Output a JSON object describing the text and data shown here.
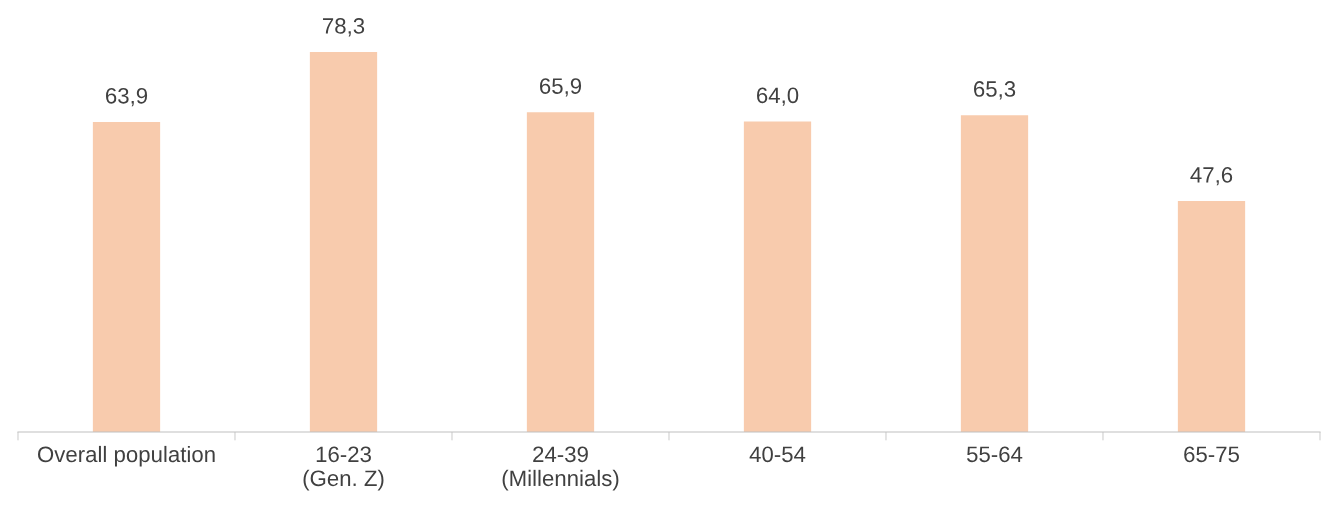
{
  "chart_data": {
    "type": "bar",
    "categories": [
      "Overall population",
      "16-23\n(Gen. Z)",
      "24-39\n(Millennials)",
      "40-54",
      "55-64",
      "65-75"
    ],
    "values": [
      63.9,
      78.3,
      65.9,
      64.0,
      65.3,
      47.6
    ],
    "value_labels": [
      "63,9",
      "78,3",
      "65,9",
      "64,0",
      "65,3",
      "47,6"
    ],
    "color": "#f8cbad",
    "grid": false,
    "legend": false
  }
}
